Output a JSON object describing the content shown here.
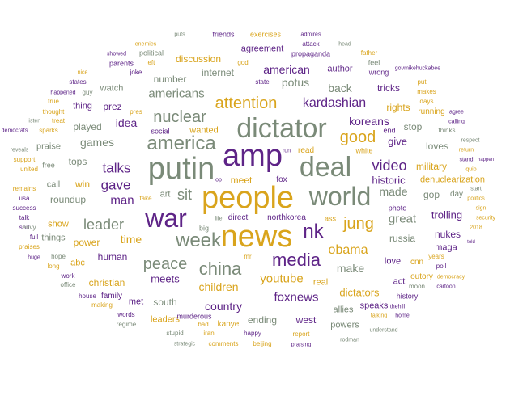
{
  "colors": {
    "gray": "#7a8a78",
    "gold": "#d9a41c",
    "purple": "#5e2487"
  },
  "words": [
    {
      "t": "people",
      "c": "gold"
    },
    {
      "t": "amp",
      "c": "purple"
    },
    {
      "t": "news",
      "c": "gold"
    },
    {
      "t": "putin",
      "c": "gray"
    },
    {
      "t": "dictator",
      "c": "gray"
    },
    {
      "t": "deal",
      "c": "gray"
    },
    {
      "t": "world",
      "c": "gray"
    },
    {
      "t": "war",
      "c": "purple"
    },
    {
      "t": "america",
      "c": "gray"
    },
    {
      "t": "week",
      "c": "gray"
    },
    {
      "t": "nuclear",
      "c": "gray"
    },
    {
      "t": "media",
      "c": "purple"
    },
    {
      "t": "attention",
      "c": "gold"
    },
    {
      "t": "china",
      "c": "gray"
    },
    {
      "t": "nk",
      "c": "purple"
    },
    {
      "t": "leader",
      "c": "gray"
    },
    {
      "t": "peace",
      "c": "gray"
    },
    {
      "t": "jung",
      "c": "gold"
    },
    {
      "t": "good",
      "c": "gold"
    },
    {
      "t": "video",
      "c": "purple"
    },
    {
      "t": "kardashian",
      "c": "purple"
    },
    {
      "t": "sit",
      "c": "gray"
    },
    {
      "t": "talks",
      "c": "purple"
    },
    {
      "t": "gave",
      "c": "purple"
    },
    {
      "t": "obama",
      "c": "gold"
    },
    {
      "t": "youtube",
      "c": "gold"
    },
    {
      "t": "foxnews",
      "c": "purple"
    },
    {
      "t": "man",
      "c": "purple"
    },
    {
      "t": "americans",
      "c": "gray"
    },
    {
      "t": "koreans",
      "c": "purple"
    },
    {
      "t": "potus",
      "c": "gray"
    },
    {
      "t": "american",
      "c": "purple"
    },
    {
      "t": "time",
      "c": "gold"
    },
    {
      "t": "make",
      "c": "gray"
    },
    {
      "t": "great",
      "c": "gray"
    },
    {
      "t": "children",
      "c": "gold"
    },
    {
      "t": "games",
      "c": "gray"
    },
    {
      "t": "idea",
      "c": "purple"
    },
    {
      "t": "historic",
      "c": "purple"
    },
    {
      "t": "made",
      "c": "gray"
    },
    {
      "t": "dictators",
      "c": "gold"
    },
    {
      "t": "country",
      "c": "purple"
    },
    {
      "t": "back",
      "c": "gray"
    },
    {
      "t": "meets",
      "c": "purple"
    },
    {
      "t": "trolling",
      "c": "purple"
    },
    {
      "t": "give",
      "c": "purple"
    },
    {
      "t": "discussion",
      "c": "gold"
    },
    {
      "t": "number",
      "c": "gray"
    },
    {
      "t": "internet",
      "c": "gray"
    },
    {
      "t": "prez",
      "c": "purple"
    },
    {
      "t": "win",
      "c": "gold"
    },
    {
      "t": "roundup",
      "c": "gray"
    },
    {
      "t": "human",
      "c": "purple"
    },
    {
      "t": "christian",
      "c": "gold"
    },
    {
      "t": "power",
      "c": "gold"
    },
    {
      "t": "russia",
      "c": "gray"
    },
    {
      "t": "rights",
      "c": "gold"
    },
    {
      "t": "tricks",
      "c": "purple"
    },
    {
      "t": "stop",
      "c": "gray"
    },
    {
      "t": "loves",
      "c": "gray"
    },
    {
      "t": "military",
      "c": "gold"
    },
    {
      "t": "denuclearization",
      "c": "gold"
    },
    {
      "t": "nukes",
      "c": "purple"
    },
    {
      "t": "gop",
      "c": "gray"
    },
    {
      "t": "meet",
      "c": "gold"
    },
    {
      "t": "tops",
      "c": "gray"
    },
    {
      "t": "call",
      "c": "gray"
    },
    {
      "t": "played",
      "c": "gray"
    },
    {
      "t": "wanted",
      "c": "gold"
    },
    {
      "t": "art",
      "c": "gray"
    },
    {
      "t": "south",
      "c": "gray"
    },
    {
      "t": "west",
      "c": "purple"
    },
    {
      "t": "ending",
      "c": "gray"
    },
    {
      "t": "allies",
      "c": "gray"
    },
    {
      "t": "speaks",
      "c": "purple"
    },
    {
      "t": "love",
      "c": "purple"
    },
    {
      "t": "act",
      "c": "purple"
    },
    {
      "t": "show",
      "c": "gold"
    },
    {
      "t": "things",
      "c": "gray"
    },
    {
      "t": "praise",
      "c": "gray"
    },
    {
      "t": "watch",
      "c": "gray"
    },
    {
      "t": "thing",
      "c": "purple"
    },
    {
      "t": "agreement",
      "c": "purple"
    },
    {
      "t": "author",
      "c": "purple"
    },
    {
      "t": "real",
      "c": "gold"
    },
    {
      "t": "leaders",
      "c": "gold"
    },
    {
      "t": "powers",
      "c": "gray"
    },
    {
      "t": "maga",
      "c": "purple"
    },
    {
      "t": "abc",
      "c": "gold"
    },
    {
      "t": "family",
      "c": "purple"
    },
    {
      "t": "met",
      "c": "purple"
    },
    {
      "t": "kanye",
      "c": "gold"
    },
    {
      "t": "direct",
      "c": "purple"
    },
    {
      "t": "northkorea",
      "c": "purple"
    },
    {
      "t": "read",
      "c": "gold"
    },
    {
      "t": "fox",
      "c": "purple"
    },
    {
      "t": "cnn",
      "c": "gold"
    },
    {
      "t": "day",
      "c": "gray"
    },
    {
      "t": "outory",
      "c": "gold"
    },
    {
      "t": "history",
      "c": "purple"
    },
    {
      "t": "running",
      "c": "gold"
    },
    {
      "t": "photo",
      "c": "purple"
    },
    {
      "t": "murderous",
      "c": "purple"
    },
    {
      "t": "social",
      "c": "purple"
    },
    {
      "t": "big",
      "c": "gray"
    },
    {
      "t": "free",
      "c": "gray"
    },
    {
      "t": "end",
      "c": "purple"
    },
    {
      "t": "exercises",
      "c": "gold"
    },
    {
      "t": "friends",
      "c": "purple"
    },
    {
      "t": "propaganda",
      "c": "purple"
    },
    {
      "t": "political",
      "c": "gray"
    },
    {
      "t": "parents",
      "c": "purple"
    },
    {
      "t": "fake",
      "c": "gold"
    },
    {
      "t": "ass",
      "c": "gold"
    },
    {
      "t": "white",
      "c": "gold"
    },
    {
      "t": "state",
      "c": "purple"
    },
    {
      "t": "feel",
      "c": "gray"
    },
    {
      "t": "wrong",
      "c": "purple"
    },
    {
      "t": "guy",
      "c": "gray"
    },
    {
      "t": "states",
      "c": "purple"
    },
    {
      "t": "father",
      "c": "gold"
    },
    {
      "t": "attack",
      "c": "purple"
    },
    {
      "t": "report",
      "c": "gold"
    },
    {
      "t": "happy",
      "c": "purple"
    },
    {
      "t": "stupid",
      "c": "gray"
    },
    {
      "t": "bad",
      "c": "gold"
    },
    {
      "t": "iran",
      "c": "gold"
    },
    {
      "t": "comments",
      "c": "gold"
    },
    {
      "t": "beijing",
      "c": "gold"
    },
    {
      "t": "praising",
      "c": "purple"
    },
    {
      "t": "understand",
      "c": "gray"
    },
    {
      "t": "rodman",
      "c": "gray"
    },
    {
      "t": "regime",
      "c": "gray"
    },
    {
      "t": "words",
      "c": "purple"
    },
    {
      "t": "making",
      "c": "gold"
    },
    {
      "t": "house",
      "c": "purple"
    },
    {
      "t": "office",
      "c": "gray"
    },
    {
      "t": "work",
      "c": "purple"
    },
    {
      "t": "long",
      "c": "gold"
    },
    {
      "t": "hope",
      "c": "gray"
    },
    {
      "t": "praises",
      "c": "gold"
    },
    {
      "t": "huge",
      "c": "purple"
    },
    {
      "t": "shit",
      "c": "purple"
    },
    {
      "t": "envy",
      "c": "gray"
    },
    {
      "t": "full",
      "c": "purple"
    },
    {
      "t": "talk",
      "c": "purple"
    },
    {
      "t": "success",
      "c": "purple"
    },
    {
      "t": "usa",
      "c": "purple"
    },
    {
      "t": "remains",
      "c": "gold"
    },
    {
      "t": "united",
      "c": "gold"
    },
    {
      "t": "support",
      "c": "gold"
    },
    {
      "t": "reveals",
      "c": "gray"
    },
    {
      "t": "democrats",
      "c": "purple"
    },
    {
      "t": "sparks",
      "c": "gold"
    },
    {
      "t": "thought",
      "c": "gold"
    },
    {
      "t": "treat",
      "c": "gold"
    },
    {
      "t": "true",
      "c": "gold"
    },
    {
      "t": "listen",
      "c": "gray"
    },
    {
      "t": "happened",
      "c": "purple"
    },
    {
      "t": "nice",
      "c": "gold"
    },
    {
      "t": "joke",
      "c": "purple"
    },
    {
      "t": "left",
      "c": "gold"
    },
    {
      "t": "pres",
      "c": "gold"
    },
    {
      "t": "enemies",
      "c": "gold"
    },
    {
      "t": "showed",
      "c": "purple"
    },
    {
      "t": "puts",
      "c": "gray"
    },
    {
      "t": "god",
      "c": "gold"
    },
    {
      "t": "admires",
      "c": "purple"
    },
    {
      "t": "head",
      "c": "gray"
    },
    {
      "t": "govmikehuckabee",
      "c": "purple"
    },
    {
      "t": "put",
      "c": "gold"
    },
    {
      "t": "makes",
      "c": "gold"
    },
    {
      "t": "days",
      "c": "gold"
    },
    {
      "t": "agree",
      "c": "purple"
    },
    {
      "t": "calling",
      "c": "purple"
    },
    {
      "t": "thinks",
      "c": "gray"
    },
    {
      "t": "respect",
      "c": "gray"
    },
    {
      "t": "return",
      "c": "gold"
    },
    {
      "t": "happen",
      "c": "purple"
    },
    {
      "t": "stand",
      "c": "purple"
    },
    {
      "t": "quip",
      "c": "gold"
    },
    {
      "t": "start",
      "c": "gray"
    },
    {
      "t": "politics",
      "c": "gold"
    },
    {
      "t": "sign",
      "c": "gold"
    },
    {
      "t": "security",
      "c": "gold"
    },
    {
      "t": "2018",
      "c": "gold"
    },
    {
      "t": "told",
      "c": "purple"
    },
    {
      "t": "years",
      "c": "gold"
    },
    {
      "t": "poll",
      "c": "purple"
    },
    {
      "t": "democracy",
      "c": "gold"
    },
    {
      "t": "cartoon",
      "c": "purple"
    },
    {
      "t": "moon",
      "c": "gray"
    },
    {
      "t": "thehill",
      "c": "purple"
    },
    {
      "t": "home",
      "c": "purple"
    },
    {
      "t": "talking",
      "c": "gold"
    },
    {
      "t": "strategic",
      "c": "gray"
    },
    {
      "t": "life",
      "c": "gray"
    },
    {
      "t": "op",
      "c": "purple"
    },
    {
      "t": "run",
      "c": "purple"
    },
    {
      "t": "mr",
      "c": "gold"
    }
  ]
}
